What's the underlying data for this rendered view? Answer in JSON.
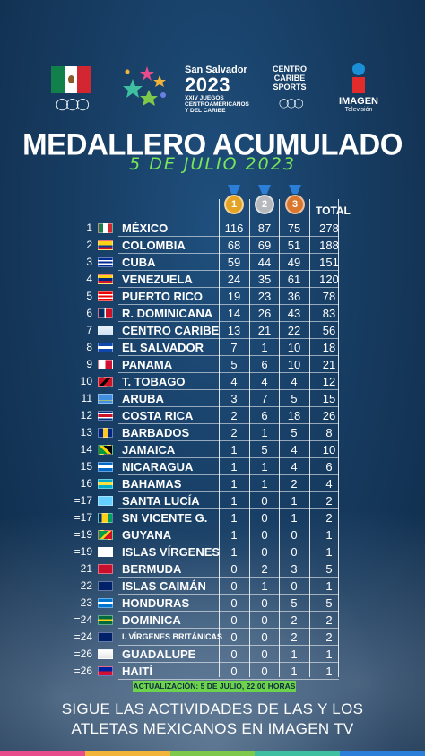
{
  "header": {
    "ss_line1": "San Salvador",
    "ss_year": "2023",
    "ss_line2": "XXIV JUEGOS",
    "ss_line3": "CENTROAMERICANOS",
    "ss_line4": "Y DEL CARIBE",
    "ccs_line1": "CENTRO",
    "ccs_line2": "CARIBE",
    "ccs_line3": "SPORTS",
    "imagen_line1": "IMAGEN",
    "imagen_line2": "Televisión"
  },
  "title": "MEDALLERO ACUMULADO",
  "subtitle": "5 DE JULIO 2023",
  "medals": {
    "gold": "1",
    "silver": "2",
    "bronze": "3"
  },
  "total_label": "TOTAL",
  "colors": {
    "gold": "#e4a324",
    "silver": "#b5b8bd",
    "bronze": "#d8772d",
    "accent_green": "#6ed34c"
  },
  "rows": [
    {
      "rank": "1",
      "name": "MÉXICO",
      "g": "116",
      "s": "87",
      "b": "75",
      "t": "278"
    },
    {
      "rank": "2",
      "name": "COLOMBIA",
      "g": "68",
      "s": "69",
      "b": "51",
      "t": "188"
    },
    {
      "rank": "3",
      "name": "CUBA",
      "g": "59",
      "s": "44",
      "b": "49",
      "t": "151"
    },
    {
      "rank": "4",
      "name": "VENEZUELA",
      "g": "24",
      "s": "35",
      "b": "61",
      "t": "120"
    },
    {
      "rank": "5",
      "name": "PUERTO RICO",
      "g": "19",
      "s": "23",
      "b": "36",
      "t": "78"
    },
    {
      "rank": "6",
      "name": "R. DOMINICANA",
      "g": "14",
      "s": "26",
      "b": "43",
      "t": "83"
    },
    {
      "rank": "7",
      "name": "CENTRO CARIBE",
      "g": "13",
      "s": "21",
      "b": "22",
      "t": "56"
    },
    {
      "rank": "8",
      "name": "EL SALVADOR",
      "g": "7",
      "s": "1",
      "b": "10",
      "t": "18"
    },
    {
      "rank": "9",
      "name": "PANAMA",
      "g": "5",
      "s": "6",
      "b": "10",
      "t": "21"
    },
    {
      "rank": "10",
      "name": "T. TOBAGO",
      "g": "4",
      "s": "4",
      "b": "4",
      "t": "12"
    },
    {
      "rank": "11",
      "name": "ARUBA",
      "g": "3",
      "s": "7",
      "b": "5",
      "t": "15"
    },
    {
      "rank": "12",
      "name": "COSTA RICA",
      "g": "2",
      "s": "6",
      "b": "18",
      "t": "26"
    },
    {
      "rank": "13",
      "name": "BARBADOS",
      "g": "2",
      "s": "1",
      "b": "5",
      "t": "8"
    },
    {
      "rank": "14",
      "name": "JAMAICA",
      "g": "1",
      "s": "5",
      "b": "4",
      "t": "10"
    },
    {
      "rank": "15",
      "name": "NICARAGUA",
      "g": "1",
      "s": "1",
      "b": "4",
      "t": "6"
    },
    {
      "rank": "16",
      "name": "BAHAMAS",
      "g": "1",
      "s": "1",
      "b": "2",
      "t": "4"
    },
    {
      "rank": "=17",
      "name": "SANTA LUCÍA",
      "g": "1",
      "s": "0",
      "b": "1",
      "t": "2"
    },
    {
      "rank": "=17",
      "name": "SN VICENTE G.",
      "g": "1",
      "s": "0",
      "b": "1",
      "t": "2"
    },
    {
      "rank": "=19",
      "name": "GUYANA",
      "g": "1",
      "s": "0",
      "b": "0",
      "t": "1"
    },
    {
      "rank": "=19",
      "name": "ISLAS VÍRGENES",
      "g": "1",
      "s": "0",
      "b": "0",
      "t": "1"
    },
    {
      "rank": "21",
      "name": "BERMUDA",
      "g": "0",
      "s": "2",
      "b": "3",
      "t": "5"
    },
    {
      "rank": "22",
      "name": "ISLAS CAIMÁN",
      "g": "0",
      "s": "1",
      "b": "0",
      "t": "1"
    },
    {
      "rank": "23",
      "name": "HONDURAS",
      "g": "0",
      "s": "0",
      "b": "5",
      "t": "5"
    },
    {
      "rank": "=24",
      "name": "DOMINICA",
      "g": "0",
      "s": "0",
      "b": "2",
      "t": "2"
    },
    {
      "rank": "=24",
      "name": "I. VÍRGENES BRITÁNICAS",
      "g": "0",
      "s": "0",
      "b": "2",
      "t": "2"
    },
    {
      "rank": "=26",
      "name": "GUADALUPE",
      "g": "0",
      "s": "0",
      "b": "1",
      "t": "1"
    },
    {
      "rank": "=26",
      "name": "HAITÍ",
      "g": "0",
      "s": "0",
      "b": "1",
      "t": "1"
    }
  ],
  "update_text": "ACTUALIZACIÓN: 5 DE JULIO, 22:00 HORAS",
  "footer_line1": "SIGUE LAS ACTIVIDADES DE LAS Y LOS",
  "footer_line2": "ATLETAS MEXICANOS EN IMAGEN TV"
}
